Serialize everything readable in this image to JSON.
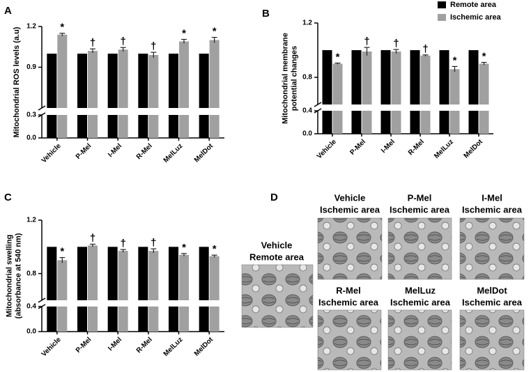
{
  "chart_data": [
    {
      "type": "bar",
      "panel_label": "A",
      "ylabel": [
        "Mitochondrial  ROS levels (a.u)"
      ],
      "categories": [
        "Vehicle",
        "P-Mel",
        "I-Mel",
        "R-Mel",
        "MelLuz",
        "MelDot"
      ],
      "y_segments": [
        {
          "ylim": [
            0,
            0.3
          ],
          "yticks": [
            {
              "value": 0,
              "label": "0.0"
            },
            0.3
          ]
        },
        {
          "ylim": [
            0.6,
            1.2
          ],
          "yticks": [
            0.9,
            1.2
          ]
        }
      ],
      "series": [
        {
          "color": "#000000",
          "values": [
            1.0,
            1.0,
            1.0,
            1.0,
            1.0,
            1.0
          ]
        },
        {
          "color": "#a0a0a0",
          "values": [
            1.14,
            1.02,
            1.03,
            0.99,
            1.09,
            1.1
          ],
          "errors": [
            0.01,
            0.015,
            0.015,
            0.02,
            0.015,
            0.02
          ],
          "annotations": [
            "*",
            "†",
            "†",
            "†",
            "*",
            "*"
          ]
        }
      ]
    },
    {
      "type": "bar",
      "panel_label": "B",
      "ylabel": [
        "Mitochondrial  membrane",
        "potential changes"
      ],
      "categories": [
        "Vehicle",
        "P-Mel",
        "I-Mel",
        "R-Mel",
        "MelLuz",
        "MelDot"
      ],
      "y_segments": [
        {
          "ylim": [
            0,
            0.4
          ],
          "yticks": [
            {
              "value": 0,
              "label": "0.0"
            },
            0.4
          ]
        },
        {
          "ylim": [
            0.6,
            1.2
          ],
          "yticks": [
            0.8,
            1.2
          ]
        }
      ],
      "series": [
        {
          "name": "Remote area",
          "color": "#000000",
          "values": [
            1.0,
            1.0,
            1.0,
            1.0,
            1.0,
            1.0
          ]
        },
        {
          "name": "Ischemic area",
          "color": "#a0a0a0",
          "values": [
            0.9,
            0.99,
            0.99,
            0.96,
            0.86,
            0.9
          ],
          "errors": [
            0.005,
            0.03,
            0.015,
            0.005,
            0.02,
            0.01
          ],
          "annotations": [
            "*",
            "†",
            "†",
            "†",
            "*",
            "*"
          ]
        }
      ]
    },
    {
      "type": "bar",
      "panel_label": "C",
      "ylabel": [
        "Mitochondrial swelling",
        "(absorbance at 540 nm)"
      ],
      "categories": [
        "Vehicle",
        "P-Mel",
        "I-Mel",
        "R-Mel",
        "MelLuz",
        "MelDot"
      ],
      "y_segments": [
        {
          "ylim": [
            0,
            0.4
          ],
          "yticks": [
            {
              "value": 0,
              "label": "0.0"
            },
            0.4
          ]
        },
        {
          "ylim": [
            0.6,
            1.2
          ],
          "yticks": [
            0.8,
            1.2
          ]
        }
      ],
      "series": [
        {
          "color": "#000000",
          "values": [
            1.0,
            1.0,
            1.0,
            1.0,
            1.0,
            1.0
          ]
        },
        {
          "color": "#a0a0a0",
          "values": [
            0.9,
            1.01,
            0.97,
            0.97,
            0.94,
            0.93
          ],
          "errors": [
            0.02,
            0.01,
            0.01,
            0.015,
            0.01,
            0.008
          ],
          "annotations": [
            "*",
            "†",
            "†",
            "†",
            "*",
            "*"
          ]
        }
      ]
    }
  ],
  "panel_d": {
    "panel_label": "D",
    "images": [
      {
        "caption": [
          "Vehicle",
          "Remote area"
        ]
      },
      {
        "caption": [
          "Vehicle",
          "Ischemic area"
        ]
      },
      {
        "caption": [
          "P-Mel",
          "Ischemic area"
        ]
      },
      {
        "caption": [
          "I-Mel",
          "Ischemic area"
        ]
      },
      {
        "caption": [
          "R-Mel",
          "Ischemic area"
        ]
      },
      {
        "caption": [
          "MelLuz",
          "Ischemic area"
        ]
      },
      {
        "caption": [
          "MelDot",
          "Ischemic area"
        ]
      }
    ]
  }
}
